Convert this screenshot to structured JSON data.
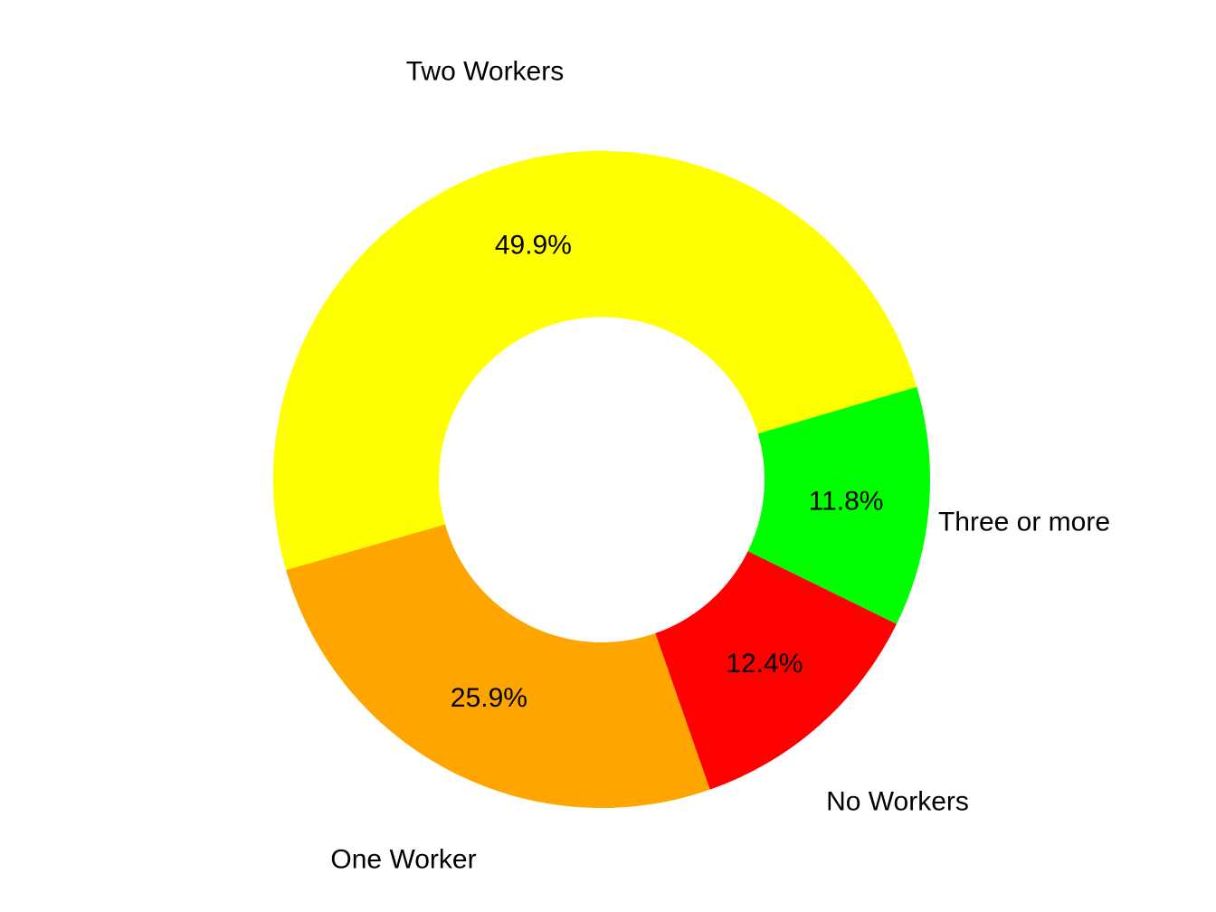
{
  "chart_data": {
    "type": "pie",
    "subtype": "donut",
    "title": "",
    "slices": [
      {
        "label": "Three or more",
        "value": 11.8,
        "pct_label": "11.8%",
        "color": "#00FF00"
      },
      {
        "label": "Two Workers",
        "value": 49.9,
        "pct_label": "49.9%",
        "color": "#FFFF00"
      },
      {
        "label": "One Worker",
        "value": 25.9,
        "pct_label": "25.9%",
        "color": "#FFA500"
      },
      {
        "label": "No Workers",
        "value": 12.4,
        "pct_label": "12.4%",
        "color": "#FF0000"
      }
    ],
    "start_angle_deg": -26.1,
    "direction": "counterclockwise",
    "donut_hole_ratio": 0.496,
    "legend": "none",
    "grid": false,
    "background_color": "#FFFFFF",
    "label_color": "#000000"
  }
}
